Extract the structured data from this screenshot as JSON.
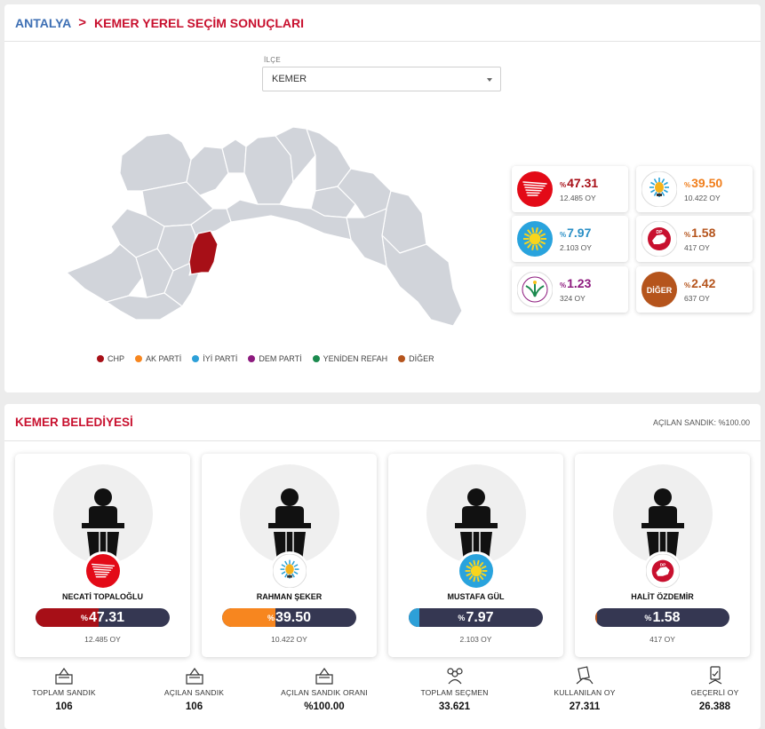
{
  "breadcrumb": {
    "province": "ANTALYA",
    "separator": ">",
    "title": "KEMER YEREL SEÇİM SONUÇLARI"
  },
  "ilce": {
    "label": "İLÇE",
    "selected": "KEMER"
  },
  "legend": [
    {
      "label": "CHP",
      "color": "#a70f17"
    },
    {
      "label": "AK PARTİ",
      "color": "#f7861f"
    },
    {
      "label": "İYİ PARTİ",
      "color": "#2da0d8"
    },
    {
      "label": "DEM PARTİ",
      "color": "#8d1a7e"
    },
    {
      "label": "YENİDEN REFAH",
      "color": "#1b8a4e"
    },
    {
      "label": "DİĞER",
      "color": "#b5541c"
    }
  ],
  "parties": [
    {
      "name": "CHP",
      "pct_symbol": "%",
      "pct": "47.31",
      "votes": "12.485 OY",
      "color": "#a70f17",
      "icon": "chp-logo-icon"
    },
    {
      "name": "AK PARTİ",
      "pct_symbol": "%",
      "pct": "39.50",
      "votes": "10.422 OY",
      "color": "#f07d1a",
      "icon": "akp-logo-icon"
    },
    {
      "name": "İYİ PARTİ",
      "pct_symbol": "%",
      "pct": "7.97",
      "votes": "2.103 OY",
      "color": "#2a8fc6",
      "icon": "iyi-logo-icon"
    },
    {
      "name": "DP",
      "pct_symbol": "%",
      "pct": "1.58",
      "votes": "417 OY",
      "color": "#b5541c",
      "icon": "dp-logo-icon"
    },
    {
      "name": "DEM PARTİ",
      "pct_symbol": "%",
      "pct": "1.23",
      "votes": "324 OY",
      "color": "#8d1a7e",
      "icon": "dem-logo-icon"
    },
    {
      "name": "DİĞER",
      "pct_symbol": "%",
      "pct": "2.42",
      "votes": "637 OY",
      "color": "#b5541c",
      "icon": "diger-logo-icon",
      "logo_text": "DİĞER"
    }
  ],
  "belediye": {
    "title": "KEMER BELEDİYESİ",
    "opened_ballot": "AÇILAN SANDIK: %100.00"
  },
  "candidates": [
    {
      "name": "NECATİ TOPALOĞLU",
      "pct_symbol": "%",
      "pct": "47.31",
      "share": 0.4731,
      "votes": "12.485 OY",
      "color": "#a70f17",
      "party": "CHP"
    },
    {
      "name": "RAHMAN ŞEKER",
      "pct_symbol": "%",
      "pct": "39.50",
      "share": 0.395,
      "votes": "10.422 OY",
      "color": "#f7861f",
      "party": "AK PARTİ"
    },
    {
      "name": "MUSTAFA GÜL",
      "pct_symbol": "%",
      "pct": "7.97",
      "share": 0.0797,
      "votes": "2.103 OY",
      "color": "#2da0d8",
      "party": "İYİ PARTİ"
    },
    {
      "name": "HALİT ÖZDEMİR",
      "pct_symbol": "%",
      "pct": "1.58",
      "share": 0.0158,
      "votes": "417 OY",
      "color": "#b5541c",
      "party": "DP"
    }
  ],
  "stats": [
    {
      "label": "TOPLAM SANDIK",
      "value": "106",
      "icon": "ballot-box-icon"
    },
    {
      "label": "AÇILAN SANDIK",
      "value": "106",
      "icon": "ballot-box-icon"
    },
    {
      "label": "AÇILAN SANDIK ORANI",
      "value": "%100.00",
      "icon": "ballot-box-icon"
    },
    {
      "label": "TOPLAM SEÇMEN",
      "value": "33.621",
      "icon": "voters-icon"
    },
    {
      "label": "KULLANILAN OY",
      "value": "27.311",
      "icon": "vote-hand-icon"
    },
    {
      "label": "GEÇERLİ OY",
      "value": "26.388",
      "icon": "valid-vote-icon"
    }
  ]
}
